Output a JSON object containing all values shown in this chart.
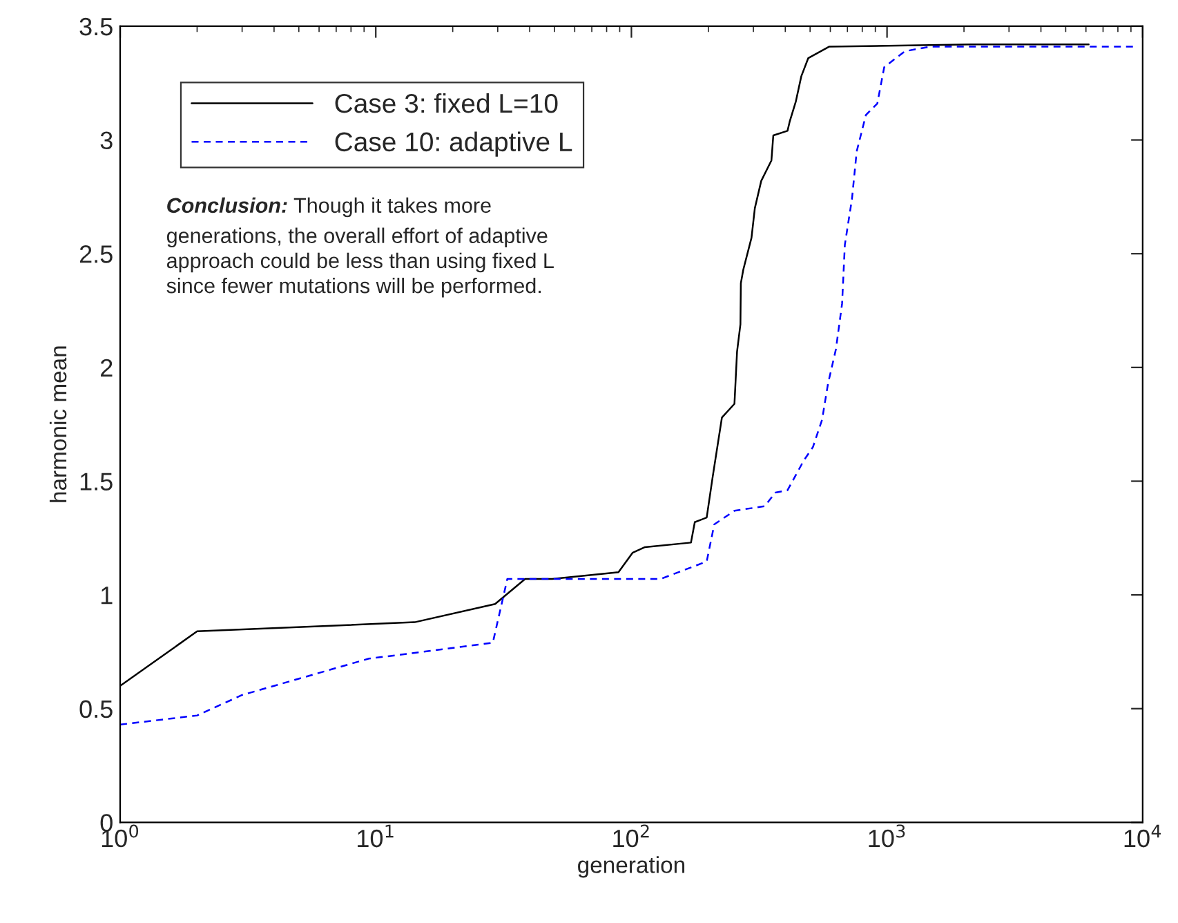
{
  "chart_data": {
    "type": "line",
    "xlabel": "generation",
    "ylabel": "harmonic mean",
    "log": "x",
    "xlim": [
      1,
      10000
    ],
    "ylim": [
      0,
      3.5
    ],
    "xticks": [
      {
        "value": 1,
        "label": "10$^{0}$"
      },
      {
        "value": 10,
        "label": "10$^{1}$"
      },
      {
        "value": 100,
        "label": "10$^{2}$"
      },
      {
        "value": 1000,
        "label": "10$^{3}$"
      },
      {
        "value": 10000,
        "label": "10$^{4}$"
      }
    ],
    "yticks": [
      0,
      0.5,
      1,
      1.5,
      2,
      2.5,
      3,
      3.5
    ],
    "grid": false,
    "legend": "top left",
    "annotations": [
      "Conclusion:",
      "Though it takes more\ngenerations, the overall effort of adaptive\napproach could be less than using fixed L\nsince fewer mutations will be performed."
    ],
    "series": [
      {
        "name": "Case 3: fixed L=10",
        "color": "#000000",
        "line_style": "solid",
        "x": [
          1,
          2,
          14.2,
          29.3,
          38.4,
          49,
          89,
          101,
          113,
          171,
          177,
          197,
          208,
          226,
          253,
          259,
          267,
          268,
          274,
          295,
          304,
          322,
          353,
          359,
          408,
          416,
          440,
          462,
          492,
          593,
          2140,
          6150
        ],
        "values": [
          0.6,
          0.84,
          0.88,
          0.96,
          1.07,
          1.07,
          1.1,
          1.185,
          1.21,
          1.23,
          1.32,
          1.34,
          1.52,
          1.78,
          1.84,
          2.07,
          2.19,
          2.37,
          2.43,
          2.57,
          2.7,
          2.82,
          2.91,
          3.02,
          3.04,
          3.08,
          3.17,
          3.28,
          3.36,
          3.41,
          3.42,
          3.42
        ]
      },
      {
        "name": "Case 10: adaptive L",
        "color": "#0000ff",
        "line_style": "dashed",
        "x": [
          1,
          2,
          3,
          9.4,
          14.2,
          28.7,
          32.7,
          130,
          197,
          211,
          253,
          332,
          366,
          408,
          472,
          513,
          557,
          588,
          631,
          667,
          684,
          729,
          761,
          827,
          916,
          975,
          1175,
          1470,
          9500
        ],
        "values": [
          0.43,
          0.47,
          0.56,
          0.72,
          0.745,
          0.79,
          1.07,
          1.07,
          1.147,
          1.31,
          1.37,
          1.39,
          1.45,
          1.46,
          1.59,
          1.65,
          1.77,
          1.93,
          2.08,
          2.28,
          2.54,
          2.74,
          2.95,
          3.11,
          3.16,
          3.32,
          3.39,
          3.41,
          3.41
        ]
      }
    ]
  }
}
